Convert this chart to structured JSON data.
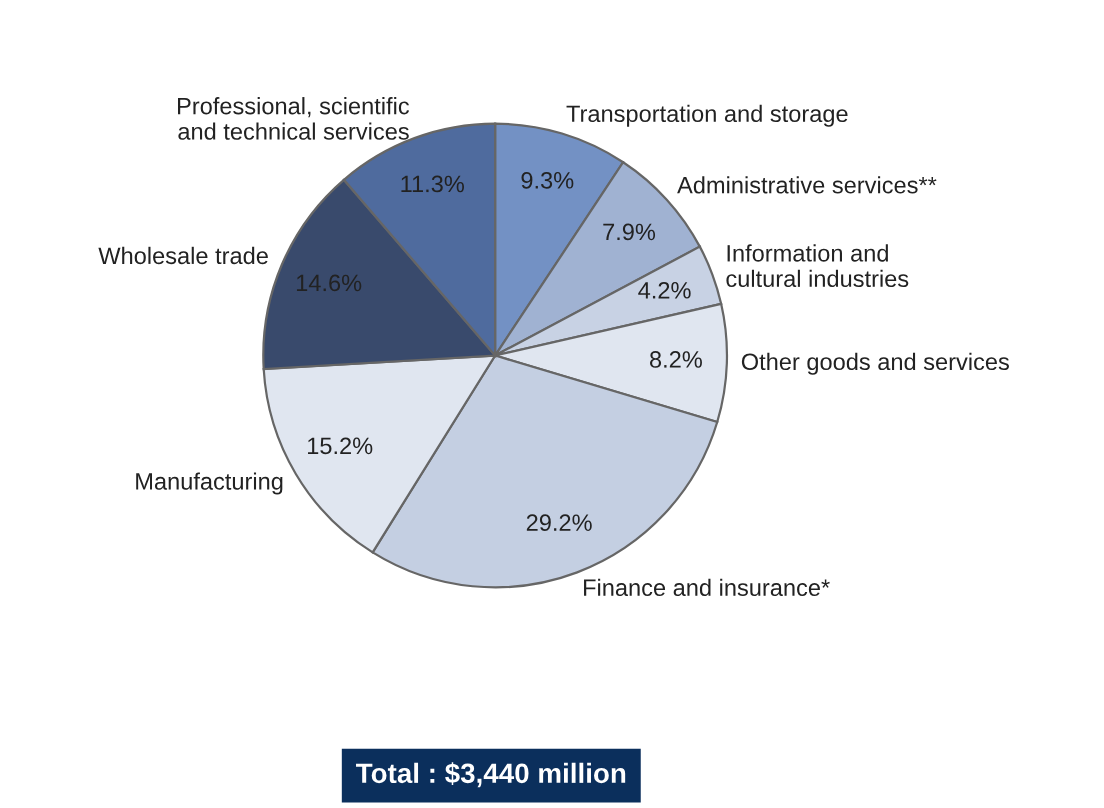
{
  "chart_data": {
    "type": "pie",
    "categories": [
      "Transportation and storage",
      "Administrative services**",
      "Information and\ncultural industries",
      "Other goods and services",
      "Finance and insurance*",
      "Manufacturing",
      "Wholesale trade",
      "Professional, scientific\nand technical services"
    ],
    "values": [
      9.3,
      7.9,
      4.2,
      8.2,
      29.2,
      15.2,
      14.6,
      11.3
    ],
    "value_labels": [
      "9.3%",
      "7.9%",
      "4.2%",
      "8.2%",
      "29.2%",
      "15.2%",
      "14.6%",
      "11.3%"
    ],
    "colors": [
      "#7391c4",
      "#a0b2d2",
      "#c8d2e4",
      "#e0e6f0",
      "#c4cfe2",
      "#e0e6f0",
      "#394a6c",
      "#4f6b9e"
    ],
    "annotations": [
      "Total : $3,440 million"
    ]
  }
}
